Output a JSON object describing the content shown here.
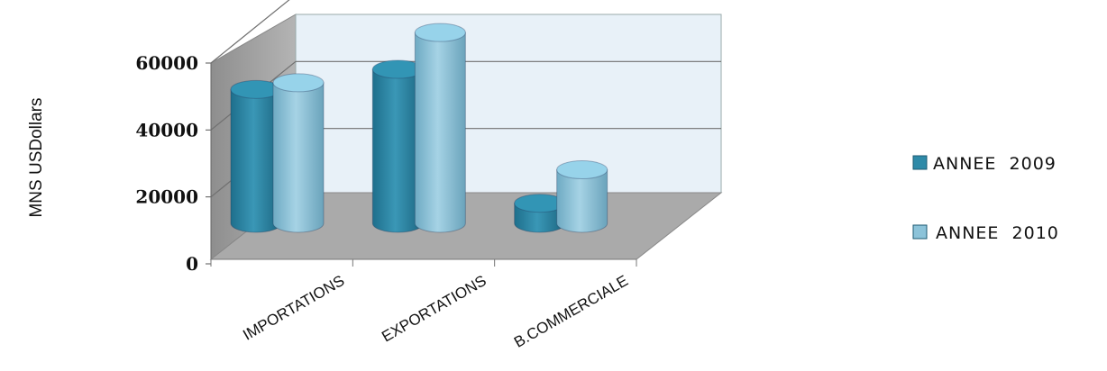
{
  "chart_data": {
    "type": "bar",
    "categories": [
      "IMPORTATIONS",
      "EXPORTATIONS",
      "B.COMMERCIALE"
    ],
    "series": [
      {
        "name": "ANNEE  2009",
        "values": [
          40000,
          46000,
          6000
        ],
        "color": "#2e8aa8"
      },
      {
        "name": "ANNEE  2010",
        "values": [
          42000,
          57000,
          16000
        ],
        "color": "#8cc3d9"
      }
    ],
    "ylabel": "MNS USDollars",
    "xlabel": "",
    "ylim": [
      0,
      60000
    ],
    "yticks": [
      "0",
      "20000",
      "40000",
      "60000"
    ],
    "ytick_values": [
      0,
      20000,
      40000,
      60000
    ],
    "legend_position": "right",
    "style": "3d-cylinder",
    "grid": true,
    "colors": {
      "back_wall": "#e8f1f8",
      "side_wall": "#a2a2a2",
      "floor": "#aaaaaa",
      "gridline": "#707070"
    }
  }
}
